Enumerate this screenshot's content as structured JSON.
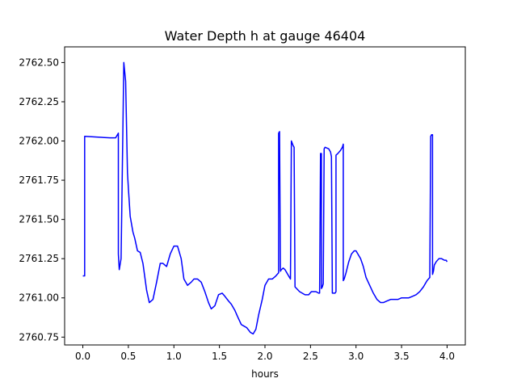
{
  "chart_data": {
    "type": "line",
    "title": "Water Depth h at gauge 46404",
    "xlabel": "hours",
    "ylabel": "",
    "xlim": [
      -0.2,
      4.2
    ],
    "ylim": [
      2760.7,
      2762.6
    ],
    "xticks": [
      0.0,
      0.5,
      1.0,
      1.5,
      2.0,
      2.5,
      3.0,
      3.5,
      4.0
    ],
    "xtick_labels": [
      "0.0",
      "0.5",
      "1.0",
      "1.5",
      "2.0",
      "2.5",
      "3.0",
      "3.5",
      "4.0"
    ],
    "yticks": [
      2760.75,
      2761.0,
      2761.25,
      2761.5,
      2761.75,
      2762.0,
      2762.25,
      2762.5
    ],
    "ytick_labels": [
      "2760.75",
      "2761.00",
      "2761.25",
      "2761.50",
      "2761.75",
      "2762.00",
      "2762.25",
      "2762.50"
    ],
    "grid": false,
    "series": [
      {
        "color": "#0000ff",
        "x": [
          0.0,
          0.02,
          0.02,
          0.3,
          0.36,
          0.39,
          0.39,
          0.4,
          0.42,
          0.45,
          0.47,
          0.49,
          0.5,
          0.52,
          0.55,
          0.57,
          0.6,
          0.63,
          0.66,
          0.7,
          0.73,
          0.77,
          0.81,
          0.85,
          0.88,
          0.92,
          0.96,
          1.0,
          1.04,
          1.08,
          1.11,
          1.15,
          1.19,
          1.22,
          1.26,
          1.3,
          1.34,
          1.38,
          1.41,
          1.45,
          1.49,
          1.53,
          1.56,
          1.6,
          1.63,
          1.67,
          1.7,
          1.74,
          1.77,
          1.8,
          1.84,
          1.87,
          1.9,
          1.93,
          1.97,
          2.0,
          2.04,
          2.08,
          2.12,
          2.15,
          2.15,
          2.16,
          2.17,
          2.17,
          2.18,
          2.2,
          2.22,
          2.25,
          2.27,
          2.28,
          2.29,
          2.29,
          2.31,
          2.32,
          2.33,
          2.38,
          2.44,
          2.48,
          2.51,
          2.56,
          2.59,
          2.6,
          2.61,
          2.61,
          2.62,
          2.62,
          2.63,
          2.64,
          2.65,
          2.66,
          2.7,
          2.72,
          2.73,
          2.74,
          2.75,
          2.75,
          2.76,
          2.77,
          2.78,
          2.78,
          2.8,
          2.83,
          2.85,
          2.86,
          2.86,
          2.87,
          2.89,
          2.92,
          2.95,
          2.98,
          3.0,
          3.02,
          3.05,
          3.08,
          3.11,
          3.15,
          3.19,
          3.23,
          3.27,
          3.3,
          3.34,
          3.38,
          3.42,
          3.46,
          3.5,
          3.54,
          3.58,
          3.62,
          3.66,
          3.7,
          3.74,
          3.78,
          3.81,
          3.82,
          3.83,
          3.84,
          3.84,
          3.85,
          3.86,
          3.88,
          3.91,
          3.94,
          3.97,
          3.99,
          4.0
        ],
        "y": [
          2761.14,
          2761.14,
          2762.03,
          2762.02,
          2762.02,
          2762.05,
          2761.28,
          2761.18,
          2761.25,
          2762.5,
          2762.38,
          2761.8,
          2761.7,
          2761.52,
          2761.42,
          2761.38,
          2761.3,
          2761.29,
          2761.22,
          2761.05,
          2760.97,
          2760.99,
          2761.1,
          2761.22,
          2761.22,
          2761.2,
          2761.28,
          2761.33,
          2761.33,
          2761.25,
          2761.12,
          2761.08,
          2761.1,
          2761.12,
          2761.12,
          2761.1,
          2761.04,
          2760.97,
          2760.93,
          2760.95,
          2761.02,
          2761.03,
          2761.01,
          2760.98,
          2760.96,
          2760.92,
          2760.88,
          2760.83,
          2760.82,
          2760.81,
          2760.78,
          2760.77,
          2760.8,
          2760.89,
          2760.99,
          2761.08,
          2761.12,
          2761.12,
          2761.14,
          2761.16,
          2762.05,
          2762.06,
          2761.17,
          2761.17,
          2761.18,
          2761.19,
          2761.18,
          2761.15,
          2761.13,
          2761.12,
          2762.0,
          2762.0,
          2761.97,
          2761.96,
          2761.07,
          2761.04,
          2761.02,
          2761.02,
          2761.04,
          2761.04,
          2761.03,
          2761.03,
          2761.9,
          2761.92,
          2761.92,
          2761.06,
          2761.07,
          2761.09,
          2761.95,
          2761.96,
          2761.95,
          2761.93,
          2761.9,
          2761.03,
          2761.03,
          2761.03,
          2761.03,
          2761.03,
          2761.04,
          2761.91,
          2761.92,
          2761.94,
          2761.96,
          2761.98,
          2761.11,
          2761.12,
          2761.16,
          2761.23,
          2761.28,
          2761.3,
          2761.3,
          2761.28,
          2761.25,
          2761.2,
          2761.13,
          2761.08,
          2761.03,
          2760.99,
          2760.97,
          2760.97,
          2760.98,
          2760.99,
          2760.99,
          2760.99,
          2761.0,
          2761.0,
          2761.0,
          2761.01,
          2761.02,
          2761.04,
          2761.07,
          2761.11,
          2761.13,
          2762.03,
          2762.04,
          2762.04,
          2761.15,
          2761.17,
          2761.21,
          2761.23,
          2761.25,
          2761.25,
          2761.24,
          2761.24,
          2761.23
        ]
      }
    ]
  }
}
